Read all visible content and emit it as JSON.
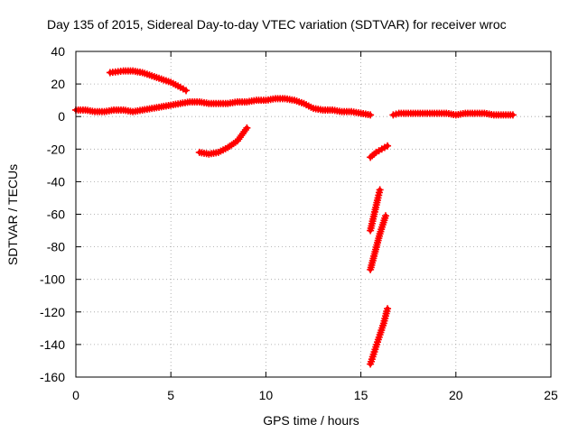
{
  "chart_data": {
    "type": "scatter",
    "title": "Day 135 of 2015, Sidereal Day-to-day VTEC variation (SDTVAR) for receiver wroc",
    "xlabel": "GPS time / hours",
    "ylabel": "SDTVAR / TECUs",
    "xlim": [
      0,
      25
    ],
    "ylim": [
      -160,
      40
    ],
    "xticks": [
      0,
      5,
      10,
      15,
      20,
      25
    ],
    "yticks": [
      -160,
      -140,
      -120,
      -100,
      -80,
      -60,
      -40,
      -20,
      0,
      20,
      40
    ],
    "grid": true,
    "legend": "none",
    "marker": "plus",
    "color": "#ff0000",
    "series": [
      {
        "points": [
          [
            0,
            4
          ],
          [
            0.5,
            4
          ],
          [
            1,
            3
          ],
          [
            1.5,
            3
          ],
          [
            2,
            4
          ],
          [
            2.5,
            4
          ],
          [
            3,
            3
          ],
          [
            3.5,
            4
          ],
          [
            4,
            5
          ],
          [
            4.5,
            6
          ],
          [
            5,
            7
          ],
          [
            5.5,
            8
          ],
          [
            6,
            9
          ],
          [
            6.5,
            9
          ],
          [
            7,
            8
          ],
          [
            7.5,
            8
          ],
          [
            8,
            8
          ],
          [
            8.5,
            9
          ],
          [
            9,
            9
          ],
          [
            9.5,
            10
          ],
          [
            10,
            10
          ],
          [
            10.5,
            11
          ],
          [
            11,
            11
          ],
          [
            11.5,
            10
          ],
          [
            12,
            8
          ],
          [
            12.5,
            5
          ],
          [
            13,
            4
          ],
          [
            13.5,
            4
          ],
          [
            14,
            3
          ],
          [
            14.5,
            3
          ],
          [
            15,
            2
          ],
          [
            15.5,
            1
          ]
        ]
      },
      {
        "points": [
          [
            1.8,
            27
          ],
          [
            2.5,
            28
          ],
          [
            3,
            28
          ],
          [
            3.5,
            27
          ],
          [
            4,
            25
          ],
          [
            4.5,
            23
          ],
          [
            5,
            21
          ],
          [
            5.5,
            18
          ],
          [
            5.8,
            16
          ]
        ]
      },
      {
        "points": [
          [
            6.5,
            -22
          ],
          [
            7,
            -23
          ],
          [
            7.5,
            -22
          ],
          [
            8,
            -19
          ],
          [
            8.5,
            -15
          ],
          [
            9,
            -7
          ]
        ]
      },
      {
        "points": [
          [
            15.5,
            -25
          ],
          [
            15.8,
            -22
          ],
          [
            16.1,
            -20
          ],
          [
            16.4,
            -18
          ]
        ]
      },
      {
        "points": [
          [
            15.5,
            -70
          ],
          [
            15.7,
            -60
          ],
          [
            15.9,
            -50
          ],
          [
            16.0,
            -45
          ]
        ]
      },
      {
        "points": [
          [
            15.5,
            -94
          ],
          [
            15.75,
            -83
          ],
          [
            16.0,
            -72
          ],
          [
            16.3,
            -61
          ]
        ]
      },
      {
        "points": [
          [
            15.5,
            -152
          ],
          [
            15.75,
            -143
          ],
          [
            16.0,
            -134
          ],
          [
            16.2,
            -127
          ],
          [
            16.4,
            -118
          ]
        ]
      },
      {
        "points": [
          [
            16.7,
            1
          ],
          [
            17,
            2
          ],
          [
            17.5,
            2
          ],
          [
            18,
            2
          ],
          [
            18.5,
            2
          ],
          [
            19,
            2
          ],
          [
            19.5,
            2
          ],
          [
            20,
            1
          ],
          [
            20.5,
            2
          ],
          [
            21,
            2
          ],
          [
            21.5,
            2
          ],
          [
            22,
            1
          ],
          [
            22.5,
            1
          ],
          [
            23,
            1
          ]
        ]
      }
    ]
  }
}
